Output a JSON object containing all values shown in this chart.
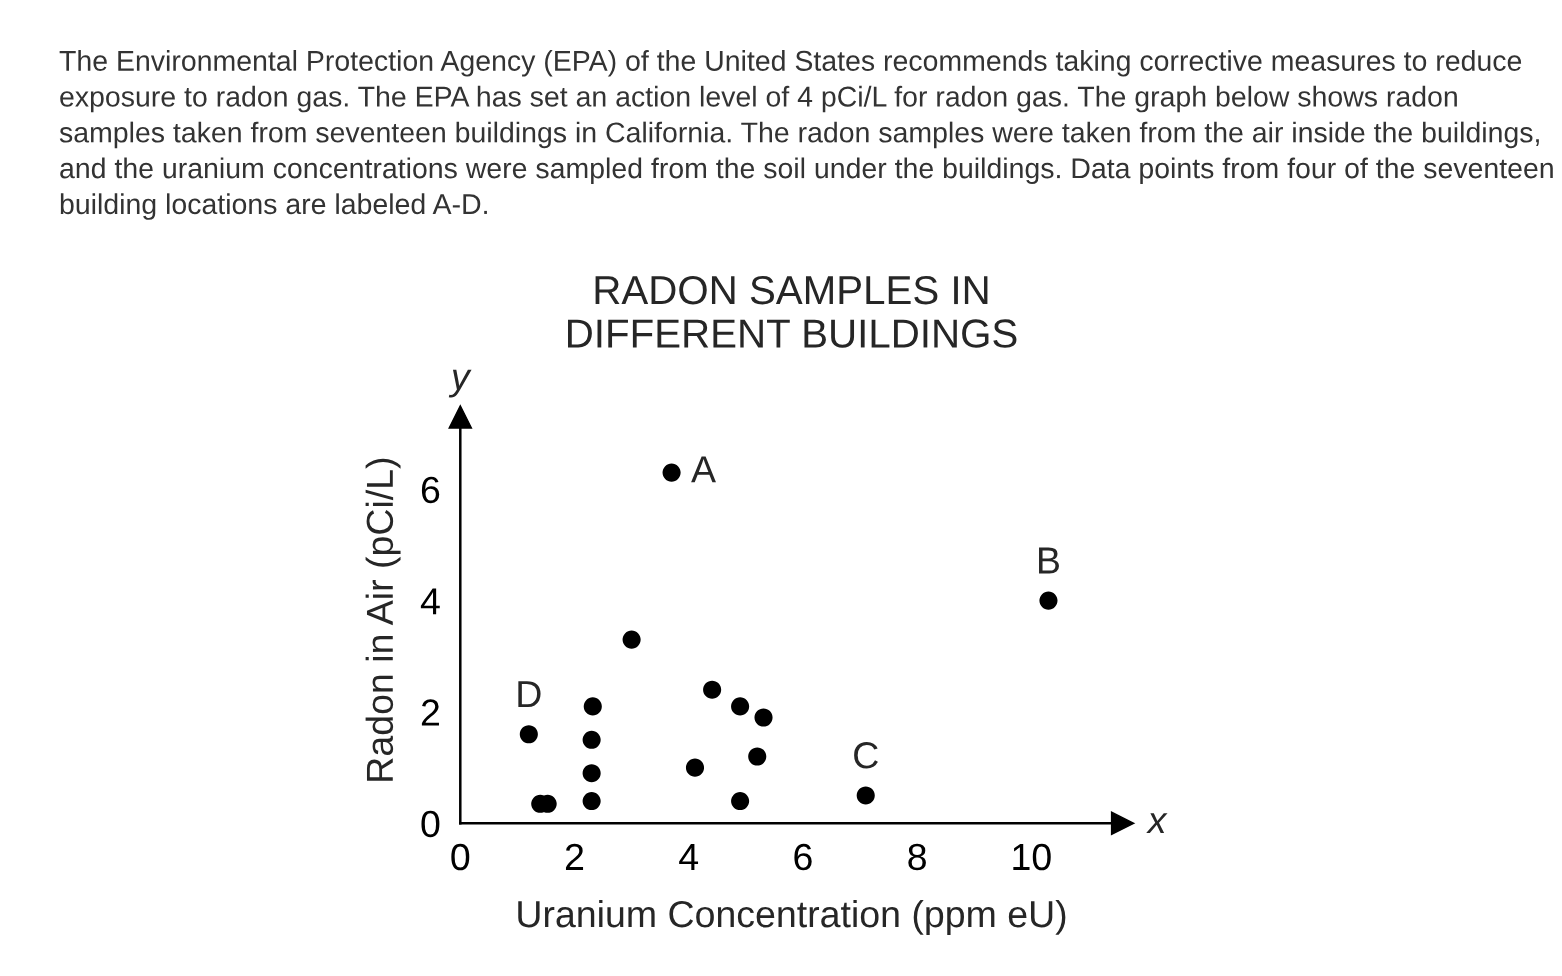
{
  "chart_data": {
    "type": "scatter",
    "title": "RADON SAMPLES IN\nDIFFERENT BUILDINGS",
    "xlabel": "Uranium Concentration (ppm eU)",
    "ylabel": "Radon in Air (pCi/L)",
    "x": [
      3.7,
      3.0,
      1.2,
      1.4,
      1.53,
      2.32,
      2.3,
      2.3,
      2.3,
      4.41,
      4.9,
      5.31,
      4.11,
      5.2,
      4.9,
      10.3,
      7.1
    ],
    "values": [
      6.3,
      3.3,
      1.6,
      0.35,
      0.35,
      2.1,
      1.5,
      0.9,
      0.4,
      2.4,
      2.1,
      1.9,
      1.0,
      1.2,
      0.4,
      4.0,
      0.5
    ],
    "color": "#000000",
    "marker": "circle",
    "xlim": [
      0,
      11.6
    ],
    "ylim": [
      0,
      7.3
    ],
    "xticks": [
      0,
      2,
      4,
      6,
      8,
      10
    ],
    "yticks": [
      0,
      2,
      4,
      6
    ],
    "annotations": [
      "The Environmental Protection Agency (EPA) of the United States recommends taking corrective measures to reduce exposure to radon gas. The EPA has set an action level of 4 pCi/L for radon gas. The graph below shows radon samples taken from seventeen buildings in California. The radon samples were taken from the air inside the buildings, and the uranium concentrations were sampled from the soil under the buildings. Data points from four of the seventeen building locations are labeled A-D.",
      "x",
      "y",
      {
        "text": "A",
        "x": 3.7,
        "y": 6.3
      },
      {
        "text": "B",
        "x": 10.3,
        "y": 4.0
      },
      {
        "text": "C",
        "x": 7.1,
        "y": 0.5
      },
      {
        "text": "D",
        "x": 1.2,
        "y": 1.6
      }
    ]
  }
}
